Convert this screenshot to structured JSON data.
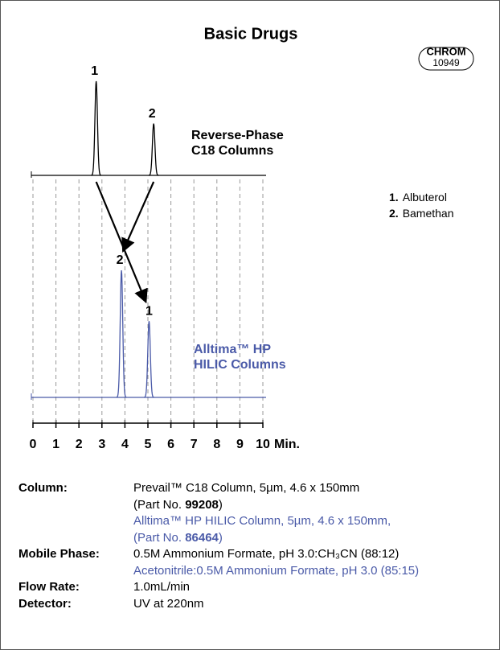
{
  "chart_data": {
    "type": "chromatogram",
    "title": "Basic Drugs",
    "badge": [
      "CHROM",
      "10949"
    ],
    "xlim": [
      0,
      10
    ],
    "xticks": [
      0,
      1,
      2,
      3,
      4,
      5,
      6,
      7,
      8,
      9,
      10
    ],
    "x_unit": "Min.",
    "grid": true,
    "series": [
      {
        "name": "Reverse-Phase C18 Columns",
        "color": "#000000",
        "peak_labels": [
          "1",
          "2"
        ],
        "x": [
          2.75,
          5.25
        ],
        "values": [
          1.0,
          0.55
        ]
      },
      {
        "name": "Alltima™ HP HILIC Columns",
        "color": "#4a5aa8",
        "peak_labels": [
          "2",
          "1"
        ],
        "x": [
          3.85,
          5.05
        ],
        "values": [
          1.0,
          0.6
        ]
      }
    ],
    "compounds": [
      {
        "number": "1.",
        "name": "Albuterol"
      },
      {
        "number": "2.",
        "name": "Bamethan"
      }
    ]
  },
  "conditions": [
    {
      "label": "Column:",
      "lines": [
        {
          "color": "#000000",
          "parts": [
            {
              "text": "Prevail™ C18 Column, 5µm, 4.6 x 150mm"
            }
          ]
        },
        {
          "color": "#000000",
          "parts": [
            {
              "text": "(Part No. "
            },
            {
              "text": "99208",
              "bold": true
            },
            {
              "text": ")"
            }
          ]
        },
        {
          "color": "#4a5aa8",
          "parts": [
            {
              "text": "Alltima™ HP HILIC Column, 5µm, 4.6 x 150mm,"
            }
          ]
        },
        {
          "color": "#4a5aa8",
          "parts": [
            {
              "text": "(Part No. "
            },
            {
              "text": "86464",
              "bold": true
            },
            {
              "text": ")"
            }
          ]
        }
      ]
    },
    {
      "label": "Mobile Phase:",
      "lines": [
        {
          "color": "#000000",
          "parts": [
            {
              "text": "0.5M Ammonium Formate, pH 3.0:CH₃CN (88:12)"
            }
          ]
        },
        {
          "color": "#4a5aa8",
          "parts": [
            {
              "text": "Acetonitrile:0.5M Ammonium Formate, pH 3.0 (85:15)"
            }
          ]
        }
      ]
    },
    {
      "label": "Flow Rate:",
      "lines": [
        {
          "color": "#000000",
          "parts": [
            {
              "text": "1.0mL/min"
            }
          ]
        }
      ]
    },
    {
      "label": "Detector:",
      "lines": [
        {
          "color": "#000000",
          "parts": [
            {
              "text": "UV at 220nm"
            }
          ]
        }
      ]
    }
  ]
}
